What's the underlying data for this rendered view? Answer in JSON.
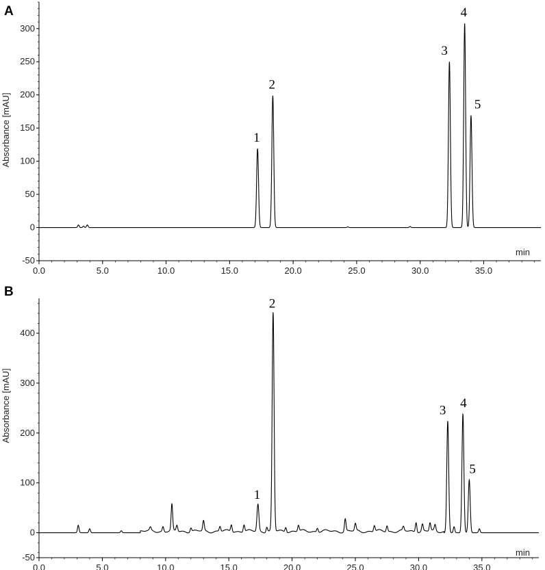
{
  "chart_data": [
    {
      "type": "line",
      "panel_label": "A",
      "ylabel": "Absorbance [mAU]",
      "xlabel": "min",
      "xlim": [
        0,
        39.5
      ],
      "ylim": [
        -50,
        340
      ],
      "x_ticks": [
        "0.0",
        "5.0",
        "10.0",
        "15.0",
        "20.0",
        "25.0",
        "30.0",
        "35.0"
      ],
      "y_ticks": [
        "-50",
        "0",
        "50",
        "100",
        "150",
        "200",
        "250",
        "300"
      ],
      "peaks": [
        {
          "label": "1",
          "x": 17.2,
          "y": 119
        },
        {
          "label": "2",
          "x": 18.4,
          "y": 199
        },
        {
          "label": "3",
          "x": 32.3,
          "y": 250
        },
        {
          "label": "4",
          "x": 33.5,
          "y": 308
        },
        {
          "label": "5",
          "x": 34.0,
          "y": 169
        }
      ],
      "minor_peaks": [
        {
          "x": 3.1,
          "y": 4
        },
        {
          "x": 3.5,
          "y": 2
        },
        {
          "x": 3.8,
          "y": 4
        },
        {
          "x": 24.3,
          "y": 1
        },
        {
          "x": 29.2,
          "y": 1.5
        }
      ]
    },
    {
      "type": "line",
      "panel_label": "B",
      "ylabel": "Absorbance [mAU]",
      "xlabel": "min",
      "xlim": [
        0,
        39.5
      ],
      "ylim": [
        -50,
        470
      ],
      "x_ticks": [
        "0.0",
        "5.0",
        "10.0",
        "15.0",
        "20.0",
        "25.0",
        "30.0",
        "35.0"
      ],
      "y_ticks": [
        "-50",
        "0",
        "100",
        "200",
        "300",
        "400"
      ],
      "peaks": [
        {
          "label": "1",
          "x": 17.3,
          "y": 54
        },
        {
          "label": "2",
          "x": 18.5,
          "y": 438
        },
        {
          "label": "3",
          "x": 32.3,
          "y": 224
        },
        {
          "label": "4",
          "x": 33.5,
          "y": 238
        },
        {
          "label": "5",
          "x": 34.0,
          "y": 106
        }
      ],
      "minor_peaks": [
        {
          "x": 3.1,
          "y": 15
        },
        {
          "x": 4.0,
          "y": 8
        },
        {
          "x": 6.5,
          "y": 4
        },
        {
          "x": 8.8,
          "y": 6
        },
        {
          "x": 9.8,
          "y": 10
        },
        {
          "x": 10.5,
          "y": 52
        },
        {
          "x": 10.9,
          "y": 12
        },
        {
          "x": 12.0,
          "y": 8
        },
        {
          "x": 13.0,
          "y": 20
        },
        {
          "x": 14.3,
          "y": 10
        },
        {
          "x": 15.2,
          "y": 14
        },
        {
          "x": 16.2,
          "y": 14
        },
        {
          "x": 18.0,
          "y": 10
        },
        {
          "x": 19.5,
          "y": 10
        },
        {
          "x": 20.5,
          "y": 12
        },
        {
          "x": 22.0,
          "y": 8
        },
        {
          "x": 24.2,
          "y": 25
        },
        {
          "x": 25.0,
          "y": 14
        },
        {
          "x": 26.5,
          "y": 12
        },
        {
          "x": 27.5,
          "y": 12
        },
        {
          "x": 28.8,
          "y": 8
        },
        {
          "x": 29.8,
          "y": 20
        },
        {
          "x": 30.3,
          "y": 14
        },
        {
          "x": 30.9,
          "y": 16
        },
        {
          "x": 31.3,
          "y": 12
        },
        {
          "x": 32.8,
          "y": 12
        },
        {
          "x": 34.8,
          "y": 8
        }
      ]
    }
  ]
}
